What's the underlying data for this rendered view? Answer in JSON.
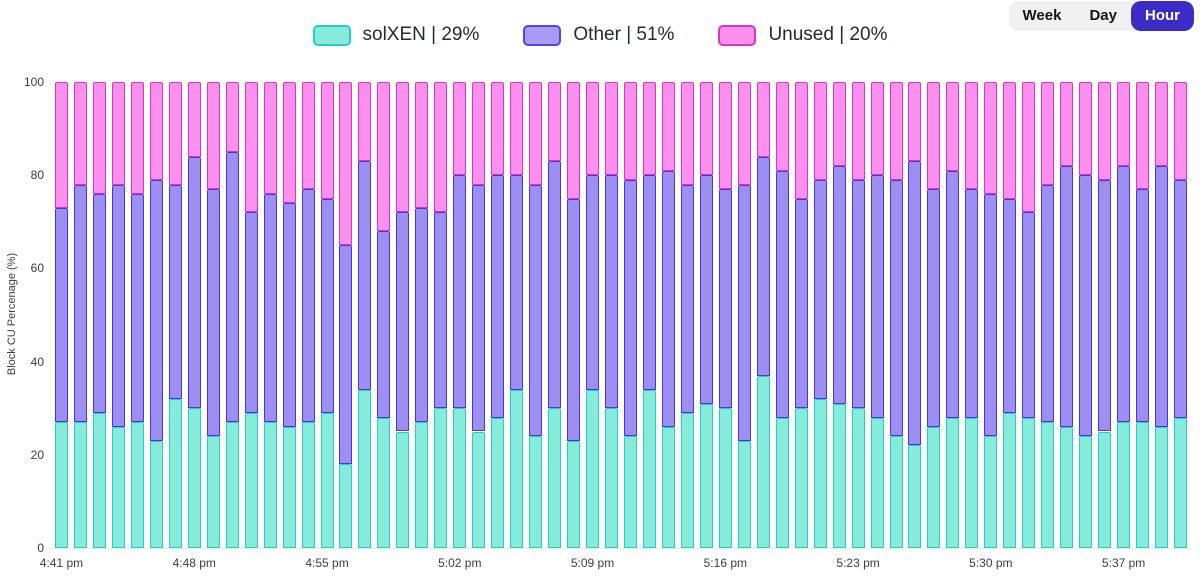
{
  "page": {
    "background": "#ffffff"
  },
  "controls": {
    "range_options": [
      {
        "label": "Week",
        "active": false
      },
      {
        "label": "Day",
        "active": false
      },
      {
        "label": "Hour",
        "active": true
      }
    ],
    "active_bg": "#3c2bc7",
    "group_bg": "#f1f0f2"
  },
  "legend": {
    "items": [
      {
        "label": "solXEN | 29%",
        "fill": "#87ebdb",
        "border": "#22cfc2"
      },
      {
        "label": "Other | 51%",
        "fill": "#a89bf4",
        "border": "#5a43e6"
      },
      {
        "label": "Unused | 20%",
        "fill": "#fb90ee",
        "border": "#da35c3"
      }
    ]
  },
  "chart_data": {
    "type": "bar",
    "stacked": true,
    "title": "",
    "xlabel": "",
    "ylabel": "Block CU Percenage (%)",
    "ylim": [
      0,
      100
    ],
    "yticks": [
      0,
      20,
      40,
      60,
      80,
      100
    ],
    "grid": false,
    "legend_position": "top",
    "num_bars": 60,
    "x_tick_every": 7,
    "x_tick_labels": [
      "4:41 pm",
      "4:48 pm",
      "4:55 pm",
      "5:02 pm",
      "5:09 pm",
      "5:16 pm",
      "5:23 pm",
      "5:30 pm",
      "5:37 pm"
    ],
    "series": [
      {
        "name": "solXEN",
        "share_label": "29%",
        "fill": "#87ebdb",
        "border": "#22cfc2",
        "values": [
          27,
          27,
          29,
          26,
          27,
          23,
          32,
          30,
          24,
          27,
          29,
          27,
          26,
          27,
          29,
          18,
          34,
          28,
          25,
          27,
          30,
          30,
          25,
          28,
          34,
          24,
          30,
          23,
          34,
          30,
          24,
          34,
          26,
          29,
          31,
          30,
          23,
          37,
          28,
          30,
          32,
          31,
          30,
          28,
          24,
          22,
          26,
          28,
          28,
          24,
          29,
          28,
          27,
          26,
          24,
          25,
          27,
          27,
          26,
          28
        ]
      },
      {
        "name": "Other",
        "share_label": "51%",
        "fill": "#9d8ff2",
        "border": "#4c35d4",
        "values": [
          46,
          51,
          47,
          52,
          49,
          56,
          46,
          54,
          53,
          58,
          43,
          49,
          48,
          50,
          46,
          47,
          49,
          40,
          47,
          46,
          42,
          50,
          53,
          52,
          46,
          54,
          53,
          52,
          46,
          50,
          55,
          46,
          55,
          49,
          49,
          47,
          55,
          47,
          53,
          45,
          47,
          51,
          49,
          52,
          55,
          61,
          51,
          53,
          49,
          52,
          46,
          44,
          51,
          56,
          56,
          54,
          55,
          50,
          56,
          51
        ]
      },
      {
        "name": "Unused",
        "share_label": "20%",
        "fill": "#fb90ee",
        "border": "#da35c3",
        "values": [
          27,
          22,
          24,
          22,
          24,
          21,
          22,
          16,
          23,
          15,
          28,
          24,
          26,
          23,
          25,
          35,
          17,
          32,
          28,
          27,
          28,
          20,
          22,
          20,
          20,
          22,
          17,
          25,
          20,
          20,
          21,
          20,
          19,
          22,
          20,
          23,
          22,
          16,
          19,
          25,
          21,
          18,
          21,
          20,
          21,
          17,
          23,
          19,
          23,
          24,
          25,
          28,
          22,
          18,
          20,
          21,
          18,
          23,
          18,
          21
        ]
      }
    ]
  }
}
